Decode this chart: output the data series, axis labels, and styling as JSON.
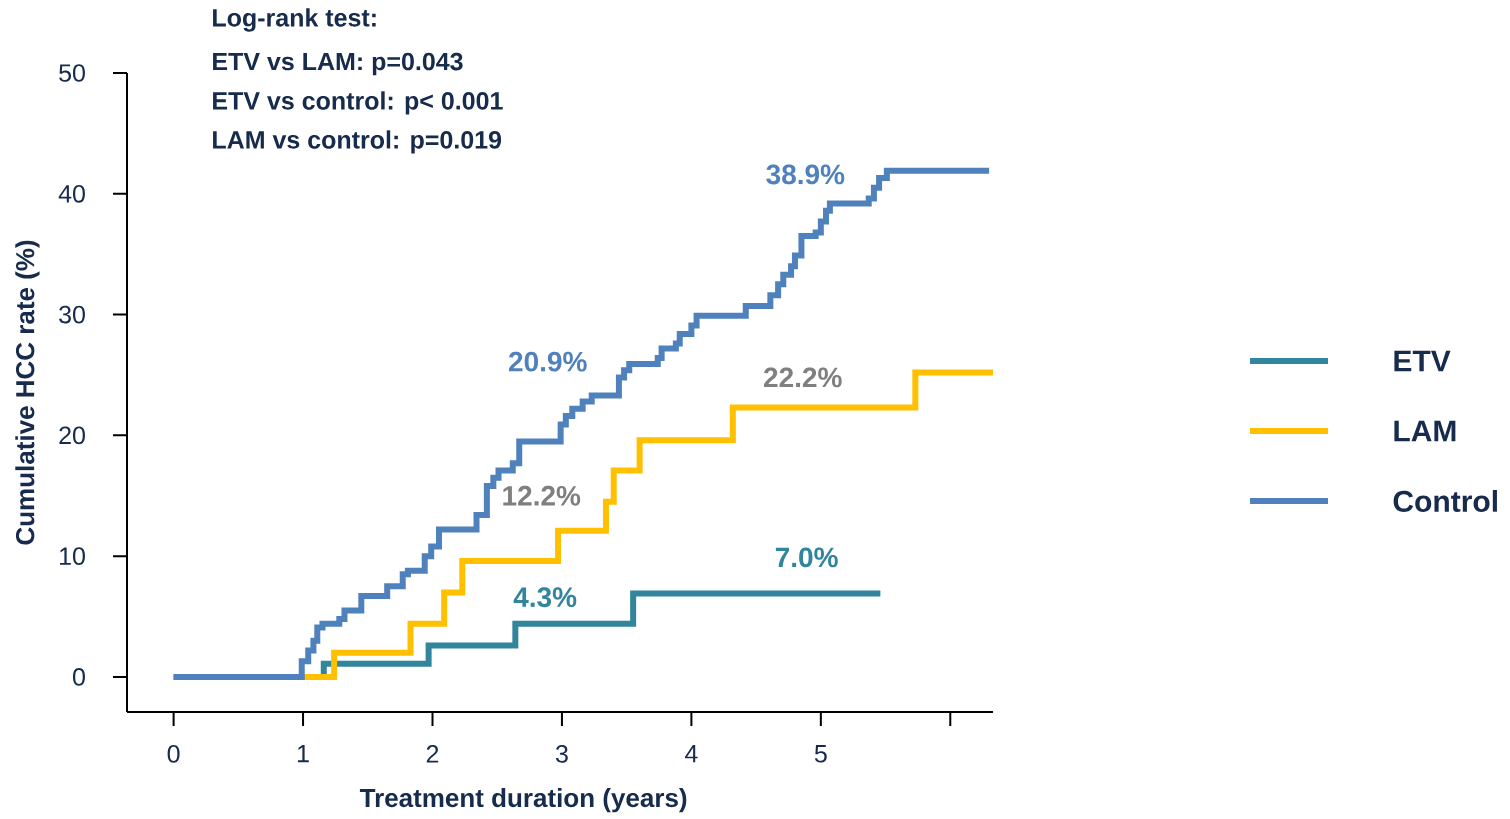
{
  "chart_data": {
    "type": "step",
    "xlabel": "Treatment duration (years)",
    "ylabel": "Cumulative HCC rate (%)",
    "xlim": [
      -0.36,
      6.33
    ],
    "ylim": [
      -2.9,
      50
    ],
    "xticks": [
      0,
      1,
      2,
      3,
      4,
      5,
      {
        "value": 6,
        "label": null
      }
    ],
    "yticks": [
      0,
      10,
      20,
      30,
      40,
      50
    ],
    "legend": "right",
    "grid": false,
    "series": [
      {
        "name": "ETV",
        "color": "#31859c",
        "x": [
          0,
          1.16,
          1.97,
          2.64,
          3.55,
          5.46
        ],
        "values": [
          0,
          1.1,
          2.6,
          4.4,
          6.9,
          6.9
        ]
      },
      {
        "name": "LAM",
        "color": "#ffc000",
        "x": [
          0,
          1.24,
          1.83,
          2.09,
          2.23,
          2.97,
          3.34,
          3.4,
          3.6,
          4.32,
          5.73,
          6.33
        ],
        "values": [
          0,
          2.0,
          4.4,
          7.0,
          9.6,
          12.1,
          14.5,
          17.1,
          19.6,
          22.3,
          25.2,
          25.2
        ]
      },
      {
        "name": "Control",
        "color": "#4f81bd",
        "x": [
          0,
          0.99,
          1.04,
          1.08,
          1.11,
          1.15,
          1.28,
          1.32,
          1.45,
          1.65,
          1.77,
          1.81,
          1.94,
          1.99,
          2.05,
          2.34,
          2.42,
          2.47,
          2.51,
          2.62,
          2.67,
          2.99,
          3.03,
          3.08,
          3.16,
          3.23,
          3.44,
          3.48,
          3.52,
          3.74,
          3.77,
          3.88,
          3.91,
          4.0,
          4.04,
          4.42,
          4.61,
          4.67,
          4.71,
          4.77,
          4.8,
          4.85,
          4.96,
          5.0,
          5.04,
          5.07,
          5.37,
          5.41,
          5.45,
          5.51,
          6.3
        ],
        "values": [
          0,
          1.3,
          2.2,
          3.0,
          4.1,
          4.4,
          4.8,
          5.5,
          6.7,
          7.5,
          8.5,
          8.8,
          10.0,
          10.8,
          12.2,
          13.4,
          15.8,
          16.5,
          17.1,
          17.7,
          19.5,
          20.9,
          21.6,
          22.2,
          22.8,
          23.3,
          24.8,
          25.4,
          25.9,
          26.4,
          27.2,
          27.6,
          28.4,
          29.1,
          29.9,
          30.7,
          31.6,
          32.5,
          33.3,
          34.0,
          34.9,
          36.5,
          36.8,
          37.7,
          38.6,
          39.2,
          39.6,
          40.5,
          41.3,
          41.9,
          41.9
        ]
      }
    ],
    "annotations": [
      "Log-rank test:",
      "ETV vs LAM: p=0.043",
      "ETV vs control: p< 0.001",
      "LAM vs control: p=0.019",
      "38.9%",
      "20.9%",
      "22.2%",
      "12.2%",
      "7.0%",
      "4.3%"
    ]
  }
}
